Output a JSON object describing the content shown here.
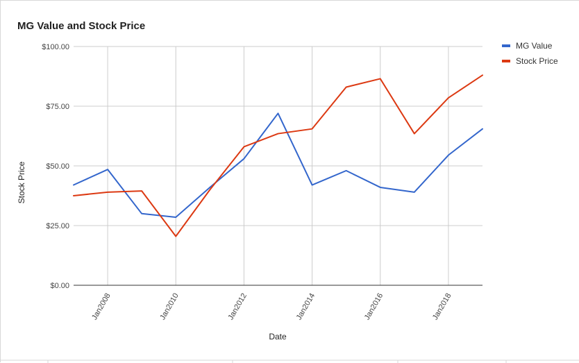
{
  "chart_data": {
    "type": "line",
    "title": "MG Value and Stock Price",
    "xlabel": "Date",
    "ylabel": "Stock Price",
    "x": [
      "2007",
      "2008",
      "2009",
      "2010",
      "2011",
      "2012",
      "2013",
      "2014",
      "2015",
      "2016",
      "2017",
      "2018",
      "2019"
    ],
    "x_tick_labels": [
      {
        "year": 2008,
        "label": "Jan2008"
      },
      {
        "year": 2010,
        "label": "Jan2010"
      },
      {
        "year": 2012,
        "label": "Jan2012"
      },
      {
        "year": 2014,
        "label": "Jan2014"
      },
      {
        "year": 2016,
        "label": "Jan2016"
      },
      {
        "year": 2018,
        "label": "Jan2018"
      }
    ],
    "y_ticks": [
      {
        "value": 0,
        "label": "$0.00"
      },
      {
        "value": 25,
        "label": "$25.00"
      },
      {
        "value": 50,
        "label": "$50.00"
      },
      {
        "value": 75,
        "label": "$75.00"
      },
      {
        "value": 100,
        "label": "$100.00"
      }
    ],
    "xlim": [
      2007,
      2019
    ],
    "ylim": [
      0,
      100
    ],
    "series": [
      {
        "name": "MG Value",
        "color": "#3366cc",
        "values": [
          42,
          48.5,
          30,
          28.5,
          41,
          53,
          72,
          42,
          48,
          41,
          39,
          54.5,
          65.5
        ]
      },
      {
        "name": "Stock Price",
        "color": "#dc3912",
        "values": [
          37.5,
          39,
          39.5,
          20.5,
          40,
          58,
          63.5,
          65.5,
          83,
          86.5,
          63.5,
          78.5,
          88
        ]
      }
    ],
    "legend_position": "right",
    "grid": true
  }
}
